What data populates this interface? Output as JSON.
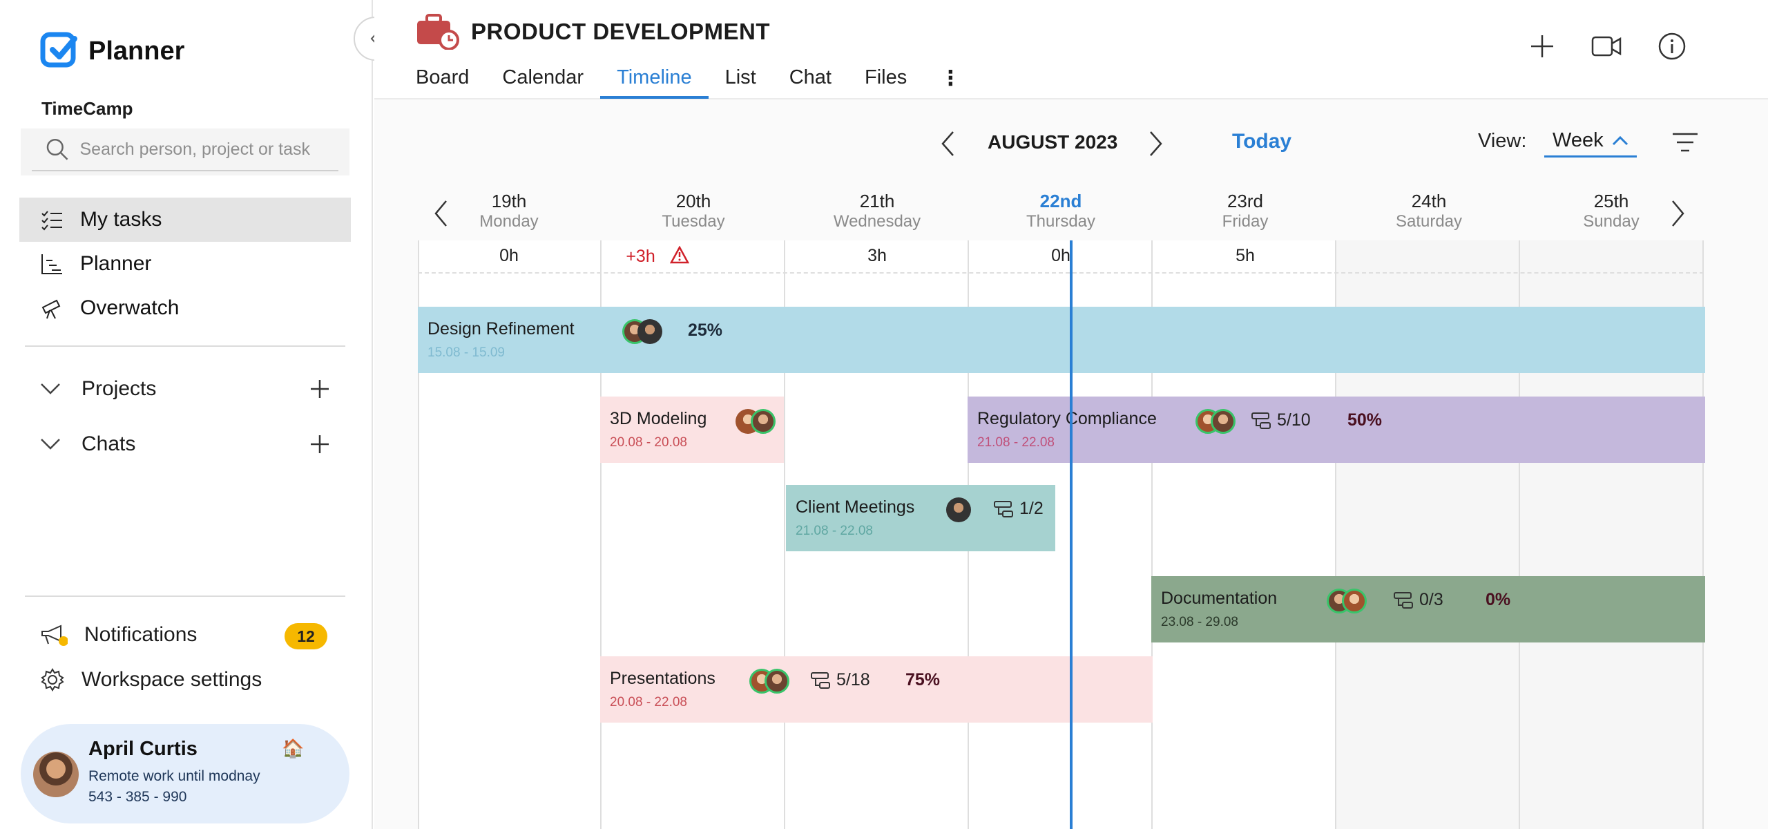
{
  "app": {
    "name": "Planner",
    "workspace": "TimeCamp"
  },
  "search": {
    "placeholder": "Search person, project or task"
  },
  "nav": {
    "items": [
      {
        "label": "My tasks"
      },
      {
        "label": "Planner"
      },
      {
        "label": "Overwatch"
      }
    ]
  },
  "sections": {
    "projects": "Projects",
    "chats": "Chats"
  },
  "bottom": {
    "notifications": "Notifications",
    "notifications_count": "12",
    "workspace_settings": "Workspace settings"
  },
  "user": {
    "name": "April Curtis",
    "status": "Remote work until modnay",
    "phone": "543 - 385 - 990"
  },
  "project": {
    "title": "PRODUCT DEVELOPMENT"
  },
  "tabs": [
    {
      "label": "Board"
    },
    {
      "label": "Calendar"
    },
    {
      "label": "Timeline"
    },
    {
      "label": "List"
    },
    {
      "label": "Chat"
    },
    {
      "label": "Files"
    }
  ],
  "timeline": {
    "month": "AUGUST 2023",
    "today": "Today",
    "view_label": "View:",
    "view_value": "Week",
    "days": [
      {
        "num": "19th",
        "name": "Monday",
        "hours": "0h"
      },
      {
        "num": "20th",
        "name": "Tuesday",
        "hours": "+3h"
      },
      {
        "num": "21th",
        "name": "Wednesday",
        "hours": "3h"
      },
      {
        "num": "22nd",
        "name": "Thursday",
        "hours": "0h"
      },
      {
        "num": "23rd",
        "name": "Friday",
        "hours": "5h"
      },
      {
        "num": "24th",
        "name": "Saturday",
        "hours": ""
      },
      {
        "num": "25th",
        "name": "Sunday",
        "hours": ""
      }
    ],
    "tasks": [
      {
        "name": "Design Refinement",
        "dates": "15.08 - 15.09",
        "progress": "25%",
        "color": "#b2dbe8",
        "date_color": "#7fbad0"
      },
      {
        "name": "3D Modeling",
        "dates": "20.08 - 20.08",
        "color": "#fbe2e3",
        "date_color": "#c94f57"
      },
      {
        "name": "Regulatory Compliance",
        "dates": "21.08 - 22.08",
        "subtasks": "5/10",
        "progress": "50%",
        "color": "#c4b8dc",
        "date_color": "#c0507a"
      },
      {
        "name": "Client Meetings",
        "dates": "21.08 - 22.08",
        "subtasks": "1/2",
        "color": "#a6d2d0",
        "date_color": "#5fa7a2"
      },
      {
        "name": "Documentation",
        "dates": "23.08 - 29.08",
        "subtasks": "0/3",
        "progress": "0%",
        "color": "#8ba88d",
        "date_color": "#2b3a2b"
      },
      {
        "name": "Presentations",
        "dates": "20.08 - 22.08",
        "subtasks": "5/18",
        "progress": "75%",
        "color": "#fbe2e3",
        "date_color": "#c94f57"
      }
    ]
  },
  "colors": {
    "accent": "#2a7fd4",
    "badge": "#f6b800",
    "warning": "#d0212a",
    "project_icon": "#c44a4a"
  }
}
